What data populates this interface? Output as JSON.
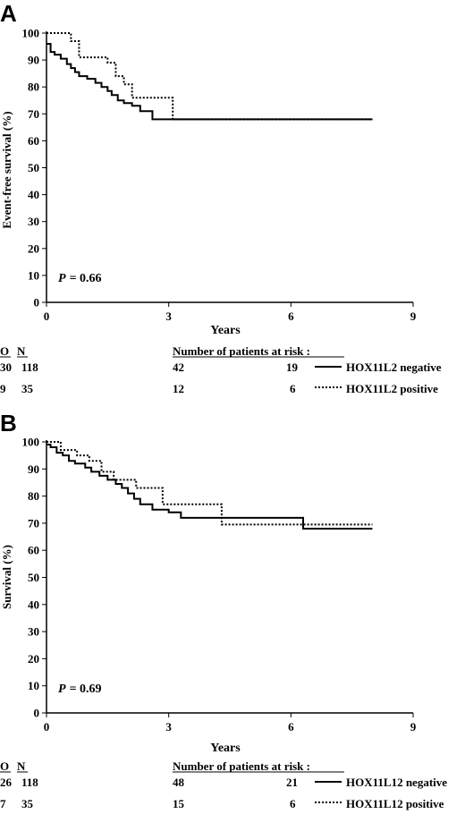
{
  "panels": [
    {
      "letter": "A",
      "chart_data": {
        "type": "line",
        "title": "",
        "xlabel": "Years",
        "ylabel": "Event-free survival (%)",
        "xlim": [
          0,
          9
        ],
        "ylim": [
          0,
          100
        ],
        "xticks": [
          0,
          3,
          6,
          9
        ],
        "yticks": [
          0,
          10,
          20,
          30,
          40,
          50,
          60,
          70,
          80,
          90,
          100
        ],
        "p_label": "P",
        "p_value": "= 0.66",
        "legend_position": "below-right",
        "series": [
          {
            "name": "HOX11L2 negative",
            "style": "solid",
            "x": [
              0,
              0.1,
              0.2,
              0.35,
              0.5,
              0.6,
              0.7,
              0.8,
              1.0,
              1.2,
              1.35,
              1.5,
              1.6,
              1.75,
              1.9,
              2.1,
              2.3,
              2.6,
              8
            ],
            "y": [
              96,
              93,
              92,
              90.5,
              88.5,
              87,
              85.5,
              84,
              83,
              81.5,
              80,
              78.5,
              77,
              75,
              74,
              73,
              71,
              68,
              68
            ]
          },
          {
            "name": "HOX11L2 positive",
            "style": "dotted",
            "x": [
              0,
              0.6,
              0.8,
              1.5,
              1.7,
              1.9,
              2.1,
              3.1,
              8
            ],
            "y": [
              100,
              97,
              91,
              89,
              84,
              81,
              76,
              68,
              68
            ]
          }
        ]
      },
      "table": {
        "col_o": "O",
        "col_n": "N",
        "risk_title": "Number of patients at risk :",
        "rows": [
          {
            "o": "30",
            "n": "118",
            "r1": "42",
            "r2": "19",
            "label": "HOX11L2 negative",
            "style": "solid"
          },
          {
            "o": "9",
            "n": "35",
            "r1": "12",
            "r2": "6",
            "label": "HOX11L2 positive",
            "style": "dotted"
          }
        ]
      }
    },
    {
      "letter": "B",
      "chart_data": {
        "type": "line",
        "title": "",
        "xlabel": "Years",
        "ylabel": "Survival (%)",
        "xlim": [
          0,
          9
        ],
        "ylim": [
          0,
          100
        ],
        "xticks": [
          0,
          3,
          6,
          9
        ],
        "yticks": [
          0,
          10,
          20,
          30,
          40,
          50,
          60,
          70,
          80,
          90,
          100
        ],
        "p_label": "P",
        "p_value": "= 0.69",
        "legend_position": "below-right",
        "series": [
          {
            "name": "HOX11L12 negative",
            "style": "solid",
            "x": [
              0,
              0.1,
              0.25,
              0.4,
              0.55,
              0.7,
              0.95,
              1.1,
              1.3,
              1.5,
              1.7,
              1.85,
              2.0,
              2.15,
              2.3,
              2.6,
              3.0,
              3.3,
              6.3,
              8
            ],
            "y": [
              99,
              98,
              96,
              95,
              93,
              92,
              90.5,
              89,
              87.5,
              86,
              84.5,
              83,
              81,
              79,
              77,
              75,
              74,
              72,
              68,
              68
            ]
          },
          {
            "name": "HOX11L12 positive",
            "style": "dotted",
            "x": [
              0,
              0.35,
              0.75,
              1.05,
              1.35,
              1.65,
              2.2,
              2.85,
              4.3,
              8
            ],
            "y": [
              100,
              97,
              95,
              93,
              89,
              86,
              83,
              77,
              69.5,
              69.5
            ]
          }
        ]
      },
      "table": {
        "col_o": "O",
        "col_n": "N",
        "risk_title": "Number of patients at risk :",
        "rows": [
          {
            "o": "26",
            "n": "118",
            "r1": "48",
            "r2": "21",
            "label": "HOX11L12 negative",
            "style": "solid"
          },
          {
            "o": "7",
            "n": "35",
            "r1": "15",
            "r2": "6",
            "label": "HOX11L12 positive",
            "style": "dotted"
          }
        ]
      }
    }
  ]
}
